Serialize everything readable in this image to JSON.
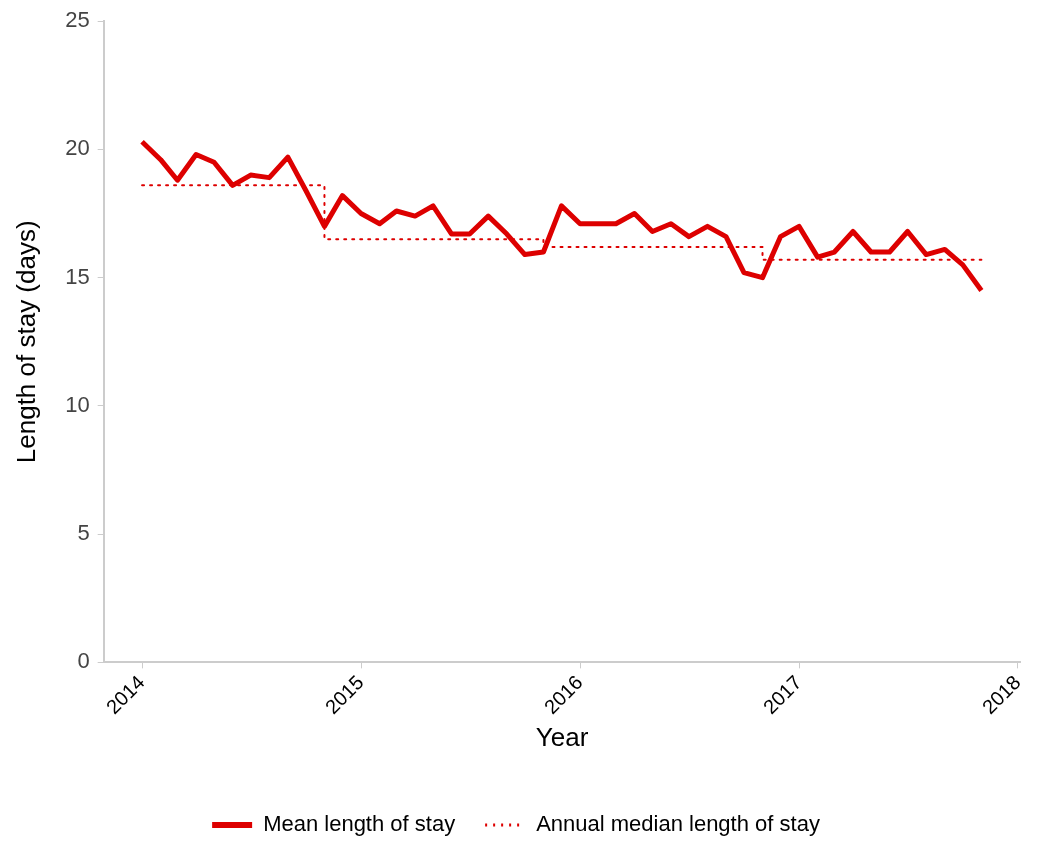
{
  "chart_data": {
    "type": "line",
    "xlabel": "Year",
    "ylabel": "Length of stay (days)",
    "xlim": [
      "2013-10-29",
      "2018-01-05"
    ],
    "xticks": [
      "2014",
      "2015",
      "2016",
      "2017",
      "2018"
    ],
    "ylim": [
      0,
      25
    ],
    "yticks": [
      0,
      5,
      10,
      15,
      20,
      25
    ],
    "grid": false,
    "legend": "bottom",
    "marker": "none",
    "series": [
      {
        "name": "Mean length of stay",
        "color": "#dd0000",
        "line_style": "solid",
        "x": [
          "2014-01",
          "2014-02",
          "2014-03",
          "2014-04",
          "2014-05",
          "2014-06",
          "2014-07",
          "2014-08",
          "2014-09",
          "2014-10",
          "2014-11",
          "2014-12",
          "2015-01",
          "2015-02",
          "2015-03",
          "2015-04",
          "2015-05",
          "2015-06",
          "2015-07",
          "2015-08",
          "2015-09",
          "2015-10",
          "2015-11",
          "2015-12",
          "2016-01",
          "2016-02",
          "2016-03",
          "2016-04",
          "2016-05",
          "2016-06",
          "2016-07",
          "2016-08",
          "2016-09",
          "2016-10",
          "2016-11",
          "2016-12",
          "2017-01",
          "2017-02",
          "2017-03",
          "2017-04",
          "2017-05",
          "2017-06",
          "2017-07",
          "2017-08",
          "2017-09",
          "2017-10",
          "2017-11"
        ],
        "values": [
          20.3,
          19.6,
          18.8,
          19.8,
          19.5,
          18.6,
          19.0,
          18.9,
          19.7,
          18.4,
          17.0,
          18.2,
          17.5,
          17.1,
          17.6,
          17.4,
          17.8,
          16.7,
          16.7,
          17.4,
          16.7,
          15.9,
          16.0,
          17.8,
          17.1,
          17.1,
          17.1,
          17.5,
          16.8,
          17.1,
          16.6,
          17.0,
          16.6,
          15.2,
          15.0,
          16.6,
          17.0,
          15.8,
          16.0,
          16.8,
          16.0,
          16.0,
          16.8,
          15.9,
          16.1,
          15.5,
          14.5
        ]
      },
      {
        "name": "Annual median length of stay",
        "type": "step",
        "color": "#dd0000",
        "line_style": "dotted",
        "x": [
          "2014-01",
          "2014-11",
          "2015-11",
          "2016-11",
          "2017-11"
        ],
        "values": [
          18.6,
          16.5,
          16.2,
          15.7,
          15.7
        ]
      }
    ]
  }
}
